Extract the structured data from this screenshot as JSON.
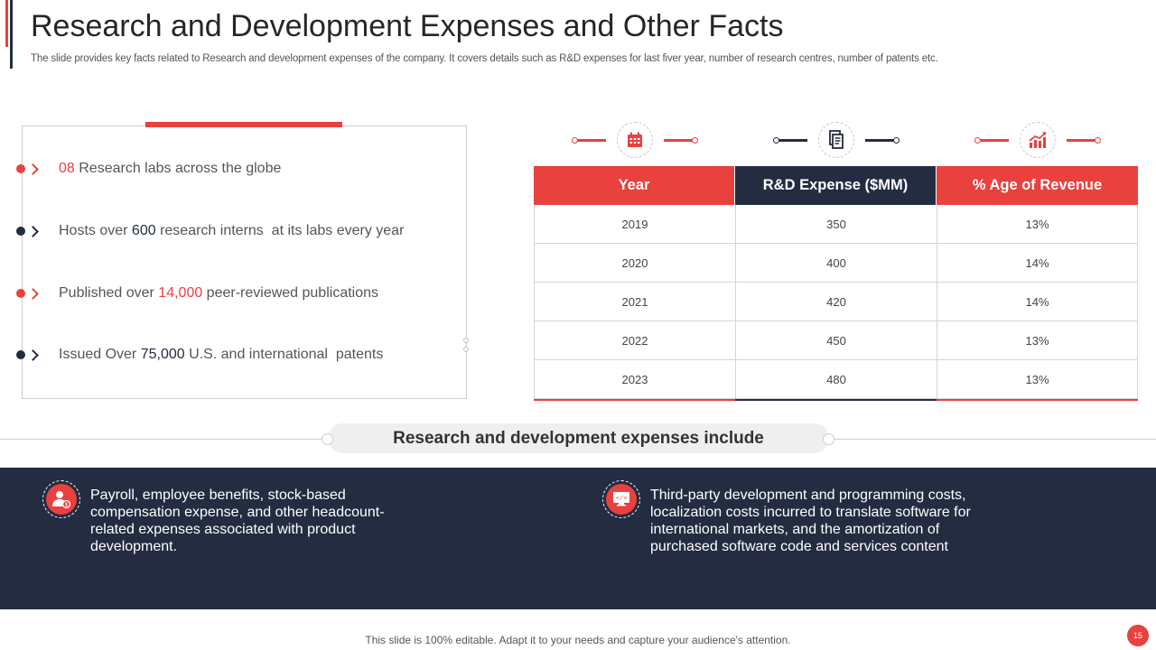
{
  "header": {
    "title": "Research and Development Expenses and Other Facts",
    "subtitle": "The slide provides key facts related to Research and development expenses of the company. It covers details such as R&D expenses for last fiver year,  number of research centres, number of patents etc."
  },
  "facts": [
    {
      "highlight": "08",
      "text": " Research labs across the globe",
      "color": "#e8413e"
    },
    {
      "prefix": "Hosts over ",
      "highlight": "600",
      "text": " research interns  at its labs every year",
      "color": "#232c41"
    },
    {
      "prefix": "Published over ",
      "highlight": "14,000",
      "text": " peer-reviewed publications",
      "color": "#e8413e"
    },
    {
      "prefix": "Issued Over ",
      "highlight": "75,000",
      "text": " U.S. and international  patents",
      "color": "#232c41"
    }
  ],
  "icons": [
    "calendar-icon",
    "documents-icon",
    "growth-chart-icon"
  ],
  "table": {
    "headers": [
      "Year",
      "R&D Expense ($MM)",
      "% Age of Revenue"
    ],
    "rows": [
      [
        "2019",
        "350",
        "13%"
      ],
      [
        "2020",
        "400",
        "14%"
      ],
      [
        "2021",
        "420",
        "14%"
      ],
      [
        "2022",
        "450",
        "13%"
      ],
      [
        "2023",
        "480",
        "13%"
      ]
    ]
  },
  "includes": {
    "heading": "Research and development expenses include",
    "items": [
      {
        "icon": "employee-icon",
        "text": "Payroll, employee benefits, stock-based compensation expense, and other headcount-related  expenses associated with product development."
      },
      {
        "icon": "code-monitor-icon",
        "text": "Third-party  development and programming costs, localization costs incurred to translate software for international markets, and the amortization of purchased software code and services content"
      }
    ]
  },
  "footer": {
    "note": "This slide is 100% editable. Adapt it to your needs and capture your audience's attention.",
    "page": "15"
  },
  "colors": {
    "accent": "#e8413e",
    "navy": "#232c41"
  }
}
